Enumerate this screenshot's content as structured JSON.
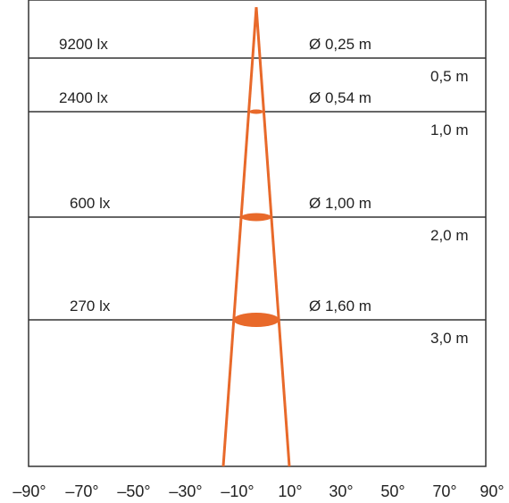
{
  "levels": [
    {
      "lux": "9200 lx",
      "diameter": "Ø 0,25 m",
      "distance": "0,5 m"
    },
    {
      "lux": "2400 lx",
      "diameter": "Ø 0,54 m",
      "distance": "1,0 m"
    },
    {
      "lux": "600 lx",
      "diameter": "Ø 1,00 m",
      "distance": "2,0 m"
    },
    {
      "lux": "270 lx",
      "diameter": "Ø 1,60 m",
      "distance": "3,0 m"
    }
  ],
  "angle_ticks": [
    "–90°",
    "–70°",
    "–50°",
    "–30°",
    "–10°",
    "10°",
    "30°",
    "50°",
    "70°",
    "90°"
  ],
  "colors": {
    "beam": "#e8692a",
    "frame": "#333333",
    "background": "#ffffff"
  }
}
